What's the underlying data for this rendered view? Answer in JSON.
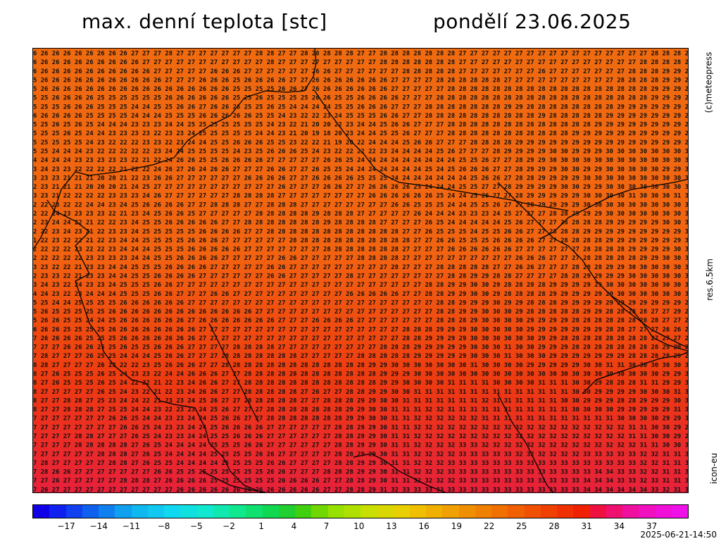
{
  "header": {
    "title_left": "max. denní teplota [stc]",
    "title_right": "pondělí 23.06.2025"
  },
  "side_labels": {
    "top": "(c)meteopress",
    "middle": "res.6.5km",
    "bottom": "icon-eu"
  },
  "footer": {
    "timestamp": "2025-06-21-14:50"
  },
  "colorbar": {
    "colors": [
      "#1000e8",
      "#1020f0",
      "#1040f0",
      "#1060f0",
      "#1080f0",
      "#10a0f0",
      "#10b8f0",
      "#10c8f0",
      "#10d8f0",
      "#10e0e0",
      "#10e8d0",
      "#10e8b0",
      "#10e890",
      "#10e070",
      "#10d850",
      "#20d030",
      "#40d010",
      "#70d800",
      "#98e000",
      "#b0e000",
      "#c8e000",
      "#d8d800",
      "#e8d000",
      "#f0c000",
      "#f0b000",
      "#f0a000",
      "#f09000",
      "#f08000",
      "#f07000",
      "#f06000",
      "#f05000",
      "#f04000",
      "#f03000",
      "#f02000",
      "#f01040",
      "#f01070",
      "#f010a0",
      "#f010c0",
      "#f010d8",
      "#f010e8"
    ],
    "tick_labels": [
      "-17",
      "-14",
      "-11",
      "-8",
      "-5",
      "-2",
      "1",
      "4",
      "7",
      "10",
      "13",
      "16",
      "19",
      "22",
      "25",
      "28",
      "31",
      "34",
      "37"
    ]
  },
  "grid": {
    "rows": [
      "6 26 26 26 26 26 26 26 26 27 27 27 28 27 27 27 27 27 27 27 28 28 27 27 28 28 28 28 28 27 27 28 28 28 28 28 28 28 27 27 27 27 27 27 27 27 27 27 27 27 27 27 27 27 27 28 28 28 2",
      "6 26 26 26 26 26 26 26 26 26 27 27 27 27 27 27 27 27 27 27 27 28 27 27 27 27 27 27 27 27 27 28 28 28 28 28 28 28 27 27 27 27 27 27 27 27 27 27 27 27 27 27 27 27 28 28 28 28 2",
      "6 26 26 26 26 26 26 26 26 26 26 27 27 27 27 27 26 26 26 27 27 27 27 27 27 26 26 27 27 27 27 27 27 28 28 28 28 28 27 27 27 27 27 27 27 26 27 27 27 27 27 27 27 28 28 28 29 29 2",
      "5 26 26 26 26 26 26 26 26 26 26 26 27 27 27 26 26 26 25 26 26 26 26 27 27 26 26 26 26 26 26 26 27 27 27 27 28 28 28 28 28 28 27 27 27 27 27 27 27 27 27 27 28 28 28 28 29 29 2",
      "5 26 26 26 26 26 26 26 26 26 26 26 26 26 26 26 26 26 25 25 25 25 26 26 27 26 26 26 26 26 26 26 27 27 27 27 27 28 28 28 28 28 28 28 28 28 28 28 28 28 28 28 28 28 28 29 29 29 2",
      "5 25 26 26 26 26 25 25 25 25 25 25 26 26 26 26 26 26 25 25 26 25 25 25 25 26 26 25 25 26 26 26 26 27 27 27 28 28 28 28 28 28 28 28 28 28 28 28 28 28 28 28 28 28 28 29 29 29 2",
      "5 25 25 26 26 26 25 25 25 24 24 25 25 26 26 27 26 26 26 25 25 26 25 24 24 24 24 25 25 26 26 26 27 27 27 28 28 28 28 28 28 28 29 29 28 28 28 28 28 28 28 28 29 29 29 29 29 29 2",
      "6 26 26 26 26 25 25 25 25 24 24 24 25 25 25 26 26 26 26 26 25 25 24 23 22 22 23 24 25 25 25 26 26 27 27 28 28 28 28 28 28 28 28 28 28 29 28 28 28 28 28 29 29 29 29 29 29 29 2",
      "5 25 26 25 26 25 24 24 24 23 23 23 24 24 25 25 25 25 25 25 25 24 23 22 21 20 20 22 23 24 24 25 26 26 27 27 27 28 28 28 28 28 28 28 28 28 28 28 28 28 29 29 29 29 29 29 29 29 2",
      "5 25 25 26 25 24 24 23 23 23 23 22 23 23 24 25 25 25 25 25 24 24 23 21 20 19 18 20 23 24 24 25 25 26 27 27 27 28 28 28 28 28 28 28 28 28 28 28 29 29 29 29 29 29 29 29 29 29 2",
      "5 25 25 25 25 24 23 22 22 22 23 23 22 23 24 24 25 25 26 26 26 25 25 23 22 22 21 19 20 22 24 24 24 25 26 26 27 27 27 28 28 28 28 29 29 29 29 29 29 29 29 29 29 29 29 29 29 29 2",
      "5 25 24 24 24 23 22 22 22 22 22 23 24 24 25 25 25 25 24 23 25 26 26 26 25 24 23 22 22 22 22 23 24 24 24 24 25 26 27 27 27 28 29 29 29 29 30 30 29 29 29 30 30 30 30 30 30 30 3",
      "4 24 24 24 23 23 23 23 23 22 21 22 24 26 26 25 25 26 26 26 26 27 27 27 27 27 26 26 25 24 24 24 24 24 24 24 24 24 25 25 26 27 27 28 29 29 30 30 30 30 30 30 30 30 30 30 30 30 3",
      "3 24 23 23 22 22 22 22 21 22 22 24 26 27 26 24 26 26 27 27 27 26 26 27 27 26 25 25 24 24 24 24 24 24 24 25 24 25 26 26 26 27 27 28 29 29 29 30 30 29 29 30 30 30 30 30 29 29 3",
      "3 23 23 21 21 21 20 20 21 22 23 26 26 27 27 27 27 27 27 26 26 26 26 27 27 26 26 26 26 25 25 25 24 24 24 24 24 24 24 25 26 26 27 28 28 29 29 29 29 30 30 30 30 30 30 30 30 30 3",
      "2 23 21 21 21 20 20 20 21 24 25 27 27 27 27 27 27 27 27 27 27 27 26 27 27 27 26 26 27 27 26 26 26 26 25 24 24 24 25 25 27 27 28 29 29 29 29 30 30 29 29 30 30 30 30 30 30 30 3",
      "3 23 21 22 22 22 22 23 23 23 24 26 27 27 27 27 27 27 28 28 28 28 27 27 27 27 27 27 27 27 26 26 26 26 26 26 25 24 24 25 26 27 27 28 29 29 29 29 29 30 30 30 30 31 30 30 30 31 3",
      "2 22 23 22 22 24 24 23 24 25 26 26 26 26 27 27 28 28 28 27 27 28 28 28 27 27 27 27 27 27 27 27 26 26 25 25 25 24 24 25 25 26 27 27 28 29 29 29 29 30 30 30 30 30 30 30 30 30 3",
      "2 22 24 23 23 23 23 22 21 23 24 25 26 26 25 27 27 27 27 27 28 28 28 28 28 29 28 28 28 27 27 27 27 27 26 24 24 24 23 23 23 24 25 27 27 27 28 28 29 29 29 30 30 30 30 30 30 30 3",
      "2 23 24 24 22 21 22 22 23 24 25 25 26 26 26 26 26 27 27 28 28 28 28 28 28 28 29 28 28 28 28 27 27 27 27 26 25 24 24 24 24 24 25 26 27 27 27 28 28 28 28 29 29 29 29 29 30 30 3",
      "2 22 23 24 23 21 22 23 23 24 25 25 25 25 25 26 26 26 26 27 27 28 28 28 28 28 28 28 28 28 28 28 28 27 27 26 25 25 25 24 25 25 26 26 27 27 28 28 28 29 29 29 29 29 29 29 29 29 3",
      "1 22 23 22 22 21 22 23 24 24 25 25 25 25 26 26 26 27 27 27 27 27 27 28 28 28 28 28 28 28 28 28 28 28 27 27 26 26 25 25 25 26 26 26 26 27 27 28 28 28 28 29 29 29 29 29 29 29 3",
      "2 22 22 22 23 22 22 23 24 24 24 25 25 25 26 26 26 26 26 27 27 27 27 27 27 27 28 28 28 28 28 28 28 27 27 27 27 26 26 26 26 26 26 27 27 27 27 27 27 28 28 28 28 29 29 29 29 30 3",
      "2 22 22 22 22 23 23 23 23 24 24 25 25 26 26 26 26 27 27 27 27 27 26 26 27 27 27 27 27 28 28 28 28 27 27 27 27 27 27 27 27 27 27 26 26 26 27 27 27 28 28 28 28 28 29 29 30 30 3",
      "3 23 22 22 21 23 23 24 24 25 25 25 26 26 26 26 27 27 27 27 27 26 26 27 27 27 27 27 27 27 27 27 28 27 27 27 28 28 28 28 28 27 27 26 26 27 27 27 28 28 28 29 29 30 30 30 30 30 3",
      "2 23 23 22 21 23 23 24 24 25 25 26 26 26 26 27 27 27 27 27 27 26 26 27 27 27 27 27 28 27 27 27 27 27 27 27 27 28 28 29 29 28 28 27 27 27 27 28 28 29 29 29 29 30 30 30 30 30 3",
      "3 24 23 22 24 23 23 24 25 25 25 26 26 27 27 27 27 27 27 27 27 27 27 27 27 27 27 27 27 27 27 27 27 27 27 28 28 29 29 30 30 29 28 28 28 28 29 29 29 29 29 30 30 30 30 30 30 30 3",
      "4 24 23 22 23 24 24 24 25 25 25 26 26 27 27 27 26 26 27 27 27 27 27 27 27 27 27 27 26 26 26 26 26 27 27 28 28 29 29 30 30 29 28 28 28 28 29 29 29 29 29 29 30 30 30 30 30 30 3",
      "5 25 24 24 25 25 25 25 26 26 26 26 26 26 27 27 27 27 27 27 27 27 27 27 27 27 27 27 27 27 27 27 27 27 27 27 28 28 29 29 29 30 29 29 28 28 28 29 29 29 29 29 29 29 29 29 29 29 2",
      "5 26 25 25 25 25 25 26 26 26 26 26 26 26 26 26 26 26 26 26 27 27 27 27 27 27 27 27 27 27 27 27 27 27 27 27 28 28 29 29 30 30 30 29 28 28 28 28 28 29 29 28 28 28 28 27 27 29 2",
      "5 26 26 25 25 24 24 25 26 26 26 26 26 26 27 26 26 26 26 26 26 26 27 27 27 26 26 26 26 27 27 27 27 27 27 27 28 28 28 29 30 30 30 30 29 29 29 29 28 28 28 28 28 28 28 28 27 27 2",
      "6 26 26 25 25 25 25 26 26 26 26 26 26 26 26 27 27 27 27 27 27 27 27 27 27 27 27 27 27 27 27 27 27 28 28 28 29 29 29 30 30 30 30 30 29 29 29 29 29 29 29 28 28 27 27 27 26 26 2",
      "7 26 26 26 26 25 25 25 26 26 26 26 26 26 26 27 27 27 27 27 27 27 27 27 27 27 27 27 27 27 27 27 27 28 28 29 29 29 29 30 30 30 30 30 30 29 29 28 28 28 28 28 28 28 28 27 27 27 2",
      "7 27 27 26 26 26 25 25 26 25 25 26 26 26 27 27 27 27 28 28 28 28 27 27 27 27 27 27 27 27 27 28 28 28 29 29 29 29 29 30 30 30 31 30 30 29 29 29 28 28 28 28 28 28 28 28 29 29 2",
      "7 28 27 27 27 26 25 25 24 24 24 25 26 26 27 27 27 28 28 28 28 28 28 28 27 27 27 27 27 28 28 28 28 28 29 29 29 29 29 30 30 30 31 30 30 30 29 29 29 29 29 29 29 28 28 28 28 29 2",
      "8 28 27 27 27 27 26 23 22 22 23 25 26 26 26 27 27 28 28 28 28 28 28 28 28 28 28 28 28 28 29 29 30 30 30 30 30 30 30 31 30 30 30 30 29 29 29 29 29 30 30 31 31 30 30 30 30 30 3",
      "8 27 26 25 25 25 26 25 24 23 23 22 24 24 26 26 26 27 27 28 28 28 28 28 28 28 28 28 28 28 28 29 29 29 30 30 30 30 30 30 30 30 30 30 30 30 30 30 30 30 30 30 30 30 30 30 29 29 3",
      "8 27 26 25 25 25 26 25 24 22 22 21 22 23 24 26 26 27 27 28 28 28 28 28 28 28 28 28 28 28 28 29 29 30 30 30 30 31 31 31 31 30 30 30 30 31 31 31 30 30 29 28 28 28 31 31 29 29 3",
      "8 27 27 27 27 27 26 25 24 23 22 21 22 23 24 26 26 27 27 28 28 28 28 28 27 26 27 27 28 28 29 29 30 30 31 31 31 31 31 31 31 31 31 31 31 31 31 31 30 30 29 29 29 29 30 30 30 31 3",
      "8 27 27 28 28 27 25 23 24 24 22 21 23 23 24 25 26 27 27 28 28 28 28 28 27 27 28 28 28 29 29 30 30 31 31 31 31 31 31 31 32 31 31 31 31 31 31 30 30 29 29 29 28 28 29 29 29 30 3",
      "8 27 27 28 28 28 27 25 25 24 24 23 22 23 23 24 25 26 27 27 27 28 28 28 28 28 28 28 29 29 30 30 31 31 31 32 32 31 31 31 31 31 31 31 31 31 31 31 30 30 30 30 29 29 29 29 29 31 3",
      "7 27 27 27 27 27 27 26 26 25 24 24 23 23 24 24 25 26 26 27 27 28 28 28 28 28 28 28 29 29 30 30 31 31 32 32 32 32 32 32 31 31 31 31 31 31 31 31 31 31 31 31 30 30 30 30 29 29 3",
      "7 27 27 27 27 27 27 27 26 26 25 24 23 23 24 24 25 26 26 26 26 27 27 27 27 27 27 28 28 29 29 30 31 31 32 32 32 32 32 32 32 32 32 32 32 32 32 32 32 32 32 32 32 31 31 30 30 29 2",
      "7 27 27 27 28 28 27 27 27 26 25 24 23 23 24 24 25 25 26 26 26 27 27 27 27 27 27 28 28 29 29 30 31 31 32 32 32 32 32 32 32 32 32 32 32 32 32 32 32 32 32 32 32 31 31 30 30 29 2",
      "7 27 27 27 28 28 28 28 28 27 26 25 24 24 24 24 25 25 25 26 26 27 27 27 27 27 27 28 28 29 29 30 31 31 32 32 32 32 33 33 32 32 32 32 32 32 32 32 32 32 32 32 32 32 31 31 30 30 3",
      "7 27 27 27 27 27 28 28 28 27 26 25 24 24 24 24 25 25 25 25 26 26 27 27 27 27 27 28 28 29 29 30 31 31 32 32 32 32 33 33 33 33 33 32 32 32 32 32 32 33 33 33 33 33 32 32 31 31 3",
      "7 28 27 27 27 27 27 28 28 27 26 25 25 24 24 24 24 25 25 25 25 26 26 27 27 27 27 28 28 29 29 30 31 31 32 32 32 33 33 33 33 33 33 33 33 33 33 33 33 33 33 33 33 33 32 32 31 31 3",
      "7 28 26 26 27 27 27 27 27 27 27 26 26 25 25 25 25 25 25 25 25 26 26 27 27 27 28 28 28 29 29 30 31 31 32 32 32 33 33 33 33 33 33 33 33 33 33 33 33 33 34 34 33 33 32 32 31 31 3",
      "7 27 26 27 27 27 27 27 28 28 28 27 26 26 26 26 25 25 25 25 25 25 26 26 26 26 27 27 28 28 29 30 31 31 32 32 32 32 33 33 33 33 33 33 33 33 33 33 33 34 34 34 33 33 32 33 31 31 3",
      "7 26 27 27 27 27 27 27 27 27 27 27 27 26 26 26 26 26 26 26 26 26 26 26 26 26 27 27 28 28 29 31 32 33 33 33 33 33 33 33 33 33 33 33 33 33 33 33 33 34 34 34 34 34 34 33 32 31 3"
    ]
  }
}
